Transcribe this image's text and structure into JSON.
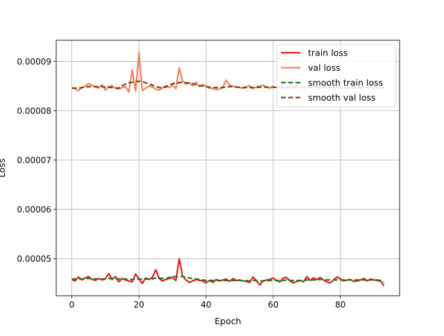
{
  "chart_data": {
    "type": "line",
    "title": "",
    "xlabel": "Epoch",
    "ylabel": "Loss",
    "xlim": [
      -4.65,
      97.65
    ],
    "ylim": [
      4.25e-05,
      9.43e-05
    ],
    "x_ticks": [
      0,
      20,
      40,
      60,
      80
    ],
    "x_tick_labels": [
      "0",
      "20",
      "40",
      "60",
      "80"
    ],
    "y_ticks": [
      5e-05,
      6e-05,
      7e-05,
      8e-05,
      9e-05
    ],
    "y_tick_labels": [
      "0.00005",
      "0.00006",
      "0.00007",
      "0.00008",
      "0.00009"
    ],
    "grid": true,
    "legend_position": "top-right",
    "x": [
      0,
      1,
      2,
      3,
      4,
      5,
      6,
      7,
      8,
      9,
      10,
      11,
      12,
      13,
      14,
      15,
      16,
      17,
      18,
      19,
      20,
      21,
      22,
      23,
      24,
      25,
      26,
      27,
      28,
      29,
      30,
      31,
      32,
      33,
      34,
      35,
      36,
      37,
      38,
      39,
      40,
      41,
      42,
      43,
      44,
      45,
      46,
      47,
      48,
      49,
      50,
      51,
      52,
      53,
      54,
      55,
      56,
      57,
      58,
      59,
      60,
      61,
      62,
      63,
      64,
      65,
      66,
      67,
      68,
      69,
      70,
      71,
      72,
      73,
      74,
      75,
      76,
      77,
      78,
      79,
      80,
      81,
      82,
      83,
      84,
      85,
      86,
      87,
      88,
      89,
      90,
      91,
      92,
      93
    ],
    "series": [
      {
        "name": "train loss",
        "color": "#e41a1c",
        "dash": "solid",
        "values": [
          4.58e-05,
          4.55e-05,
          4.63e-05,
          4.57e-05,
          4.61e-05,
          4.64e-05,
          4.58e-05,
          4.56e-05,
          4.6e-05,
          4.57e-05,
          4.59e-05,
          4.7e-05,
          4.58e-05,
          4.64e-05,
          4.53e-05,
          4.6e-05,
          4.57e-05,
          4.55e-05,
          4.53e-05,
          4.69e-05,
          4.59e-05,
          4.5e-05,
          4.61e-05,
          4.58e-05,
          4.62e-05,
          4.78e-05,
          4.6e-05,
          4.55e-05,
          4.58e-05,
          4.6e-05,
          4.62e-05,
          4.56e-05,
          5e-05,
          4.65e-05,
          4.57e-05,
          4.52e-05,
          4.55e-05,
          4.58e-05,
          4.56e-05,
          4.55e-05,
          4.51e-05,
          4.56e-05,
          4.52e-05,
          4.58e-05,
          4.55e-05,
          4.57e-05,
          4.59e-05,
          4.54e-05,
          4.6e-05,
          4.56e-05,
          4.57e-05,
          4.55e-05,
          4.54e-05,
          4.52e-05,
          4.63e-05,
          4.55e-05,
          4.47e-05,
          4.55e-05,
          4.57e-05,
          4.58e-05,
          4.61e-05,
          4.56e-05,
          4.53e-05,
          4.61e-05,
          4.62e-05,
          4.55e-05,
          4.51e-05,
          4.54e-05,
          4.56e-05,
          4.53e-05,
          4.64e-05,
          4.56e-05,
          4.61e-05,
          4.58e-05,
          4.62e-05,
          4.57e-05,
          4.53e-05,
          4.51e-05,
          4.57e-05,
          4.63e-05,
          4.59e-05,
          4.55e-05,
          4.57e-05,
          4.58e-05,
          4.54e-05,
          4.55e-05,
          4.57e-05,
          4.6e-05,
          4.55e-05,
          4.59e-05,
          4.57e-05,
          4.56e-05,
          4.54e-05,
          4.45e-05
        ]
      },
      {
        "name": "val loss",
        "color": "#f0805a",
        "dash": "solid",
        "values": [
          8.47e-05,
          8.44e-05,
          8.41e-05,
          8.47e-05,
          8.5e-05,
          8.55e-05,
          8.52e-05,
          8.48e-05,
          8.46e-05,
          8.53e-05,
          8.42e-05,
          8.49e-05,
          8.51e-05,
          8.46e-05,
          8.44e-05,
          8.47e-05,
          8.49e-05,
          8.38e-05,
          8.83e-05,
          8.4e-05,
          9.18e-05,
          8.41e-05,
          8.46e-05,
          8.5e-05,
          8.48e-05,
          8.44e-05,
          8.42e-05,
          8.46e-05,
          8.51e-05,
          8.47e-05,
          8.52e-05,
          8.45e-05,
          8.87e-05,
          8.6e-05,
          8.54e-05,
          8.57e-05,
          8.51e-05,
          8.58e-05,
          8.49e-05,
          8.53e-05,
          8.5e-05,
          8.46e-05,
          8.45e-05,
          8.43e-05,
          8.44e-05,
          8.48e-05,
          8.62e-05,
          8.52e-05,
          8.5e-05,
          8.48e-05,
          8.47e-05,
          8.46e-05,
          8.49e-05,
          8.51e-05,
          8.45e-05,
          8.49e-05,
          8.5e-05,
          8.52e-05,
          8.48e-05,
          8.46e-05,
          8.49e-05,
          8.47e-05,
          8.5e-05,
          8.45e-05,
          8.48e-05,
          8.46e-05,
          8.49e-05,
          8.52e-05,
          8.48e-05,
          8.46e-05,
          8.5e-05,
          8.49e-05,
          8.51e-05,
          8.47e-05,
          8.46e-05,
          8.48e-05,
          8.5e-05,
          8.47e-05,
          8.45e-05,
          8.49e-05,
          8.47e-05,
          8.46e-05,
          8.45e-05,
          8.48e-05,
          8.47e-05,
          8.46e-05,
          8.45e-05,
          8.48e-05,
          8.46e-05,
          8.47e-05,
          8.46e-05,
          8.45e-05,
          8.47e-05,
          8.46e-05
        ]
      },
      {
        "name": "smooth train loss",
        "color": "#1a7a1a",
        "dash": "dashed",
        "values": [
          4.59e-05,
          4.59e-05,
          4.59e-05,
          4.59e-05,
          4.6e-05,
          4.6e-05,
          4.6e-05,
          4.59e-05,
          4.59e-05,
          4.59e-05,
          4.59e-05,
          4.6e-05,
          4.6e-05,
          4.6e-05,
          4.59e-05,
          4.59e-05,
          4.59e-05,
          4.58e-05,
          4.58e-05,
          4.59e-05,
          4.59e-05,
          4.59e-05,
          4.59e-05,
          4.59e-05,
          4.59e-05,
          4.61e-05,
          4.61e-05,
          4.6e-05,
          4.6e-05,
          4.62e-05,
          4.64e-05,
          4.64e-05,
          4.64e-05,
          4.64e-05,
          4.63e-05,
          4.61e-05,
          4.6e-05,
          4.59e-05,
          4.58e-05,
          4.57e-05,
          4.56e-05,
          4.56e-05,
          4.56e-05,
          4.56e-05,
          4.56e-05,
          4.56e-05,
          4.56e-05,
          4.56e-05,
          4.56e-05,
          4.56e-05,
          4.56e-05,
          4.56e-05,
          4.56e-05,
          4.55e-05,
          4.56e-05,
          4.56e-05,
          4.55e-05,
          4.55e-05,
          4.55e-05,
          4.56e-05,
          4.56e-05,
          4.56e-05,
          4.56e-05,
          4.56e-05,
          4.57e-05,
          4.56e-05,
          4.56e-05,
          4.56e-05,
          4.56e-05,
          4.56e-05,
          4.57e-05,
          4.57e-05,
          4.57e-05,
          4.57e-05,
          4.58e-05,
          4.58e-05,
          4.57e-05,
          4.57e-05,
          4.57e-05,
          4.57e-05,
          4.57e-05,
          4.57e-05,
          4.57e-05,
          4.57e-05,
          4.57e-05,
          4.57e-05,
          4.57e-05,
          4.57e-05,
          4.57e-05,
          4.57e-05,
          4.57e-05,
          4.57e-05,
          4.56e-05,
          4.52e-05
        ]
      },
      {
        "name": "smooth val loss",
        "color": "#8b3a0f",
        "dash": "dashed",
        "values": [
          8.46e-05,
          8.46e-05,
          8.46e-05,
          8.47e-05,
          8.48e-05,
          8.49e-05,
          8.49e-05,
          8.49e-05,
          8.49e-05,
          8.49e-05,
          8.48e-05,
          8.48e-05,
          8.47e-05,
          8.46e-05,
          8.46e-05,
          8.51e-05,
          8.54e-05,
          8.57e-05,
          8.58e-05,
          8.59e-05,
          8.6e-05,
          8.59e-05,
          8.57e-05,
          8.54e-05,
          8.52e-05,
          8.5e-05,
          8.47e-05,
          8.47e-05,
          8.48e-05,
          8.52e-05,
          8.55e-05,
          8.56e-05,
          8.57e-05,
          8.58e-05,
          8.57e-05,
          8.56e-05,
          8.55e-05,
          8.53e-05,
          8.51e-05,
          8.5e-05,
          8.49e-05,
          8.48e-05,
          8.47e-05,
          8.47e-05,
          8.47e-05,
          8.47e-05,
          8.48e-05,
          8.49e-05,
          8.49e-05,
          8.48e-05,
          8.48e-05,
          8.47e-05,
          8.47e-05,
          8.47e-05,
          8.47e-05,
          8.47e-05,
          8.48e-05,
          8.48e-05,
          8.48e-05,
          8.48e-05,
          8.48e-05,
          8.47e-05,
          8.47e-05,
          8.47e-05,
          8.47e-05,
          8.47e-05,
          8.47e-05,
          8.48e-05,
          8.48e-05,
          8.47e-05,
          8.48e-05,
          8.48e-05,
          8.48e-05,
          8.48e-05,
          8.47e-05,
          8.47e-05,
          8.48e-05,
          8.48e-05,
          8.47e-05,
          8.47e-05,
          8.47e-05,
          8.47e-05,
          8.47e-05,
          8.47e-05,
          8.47e-05,
          8.47e-05,
          8.47e-05,
          8.47e-05,
          8.47e-05,
          8.47e-05,
          8.47e-05,
          8.47e-05,
          8.47e-05,
          8.47e-05
        ]
      }
    ]
  }
}
